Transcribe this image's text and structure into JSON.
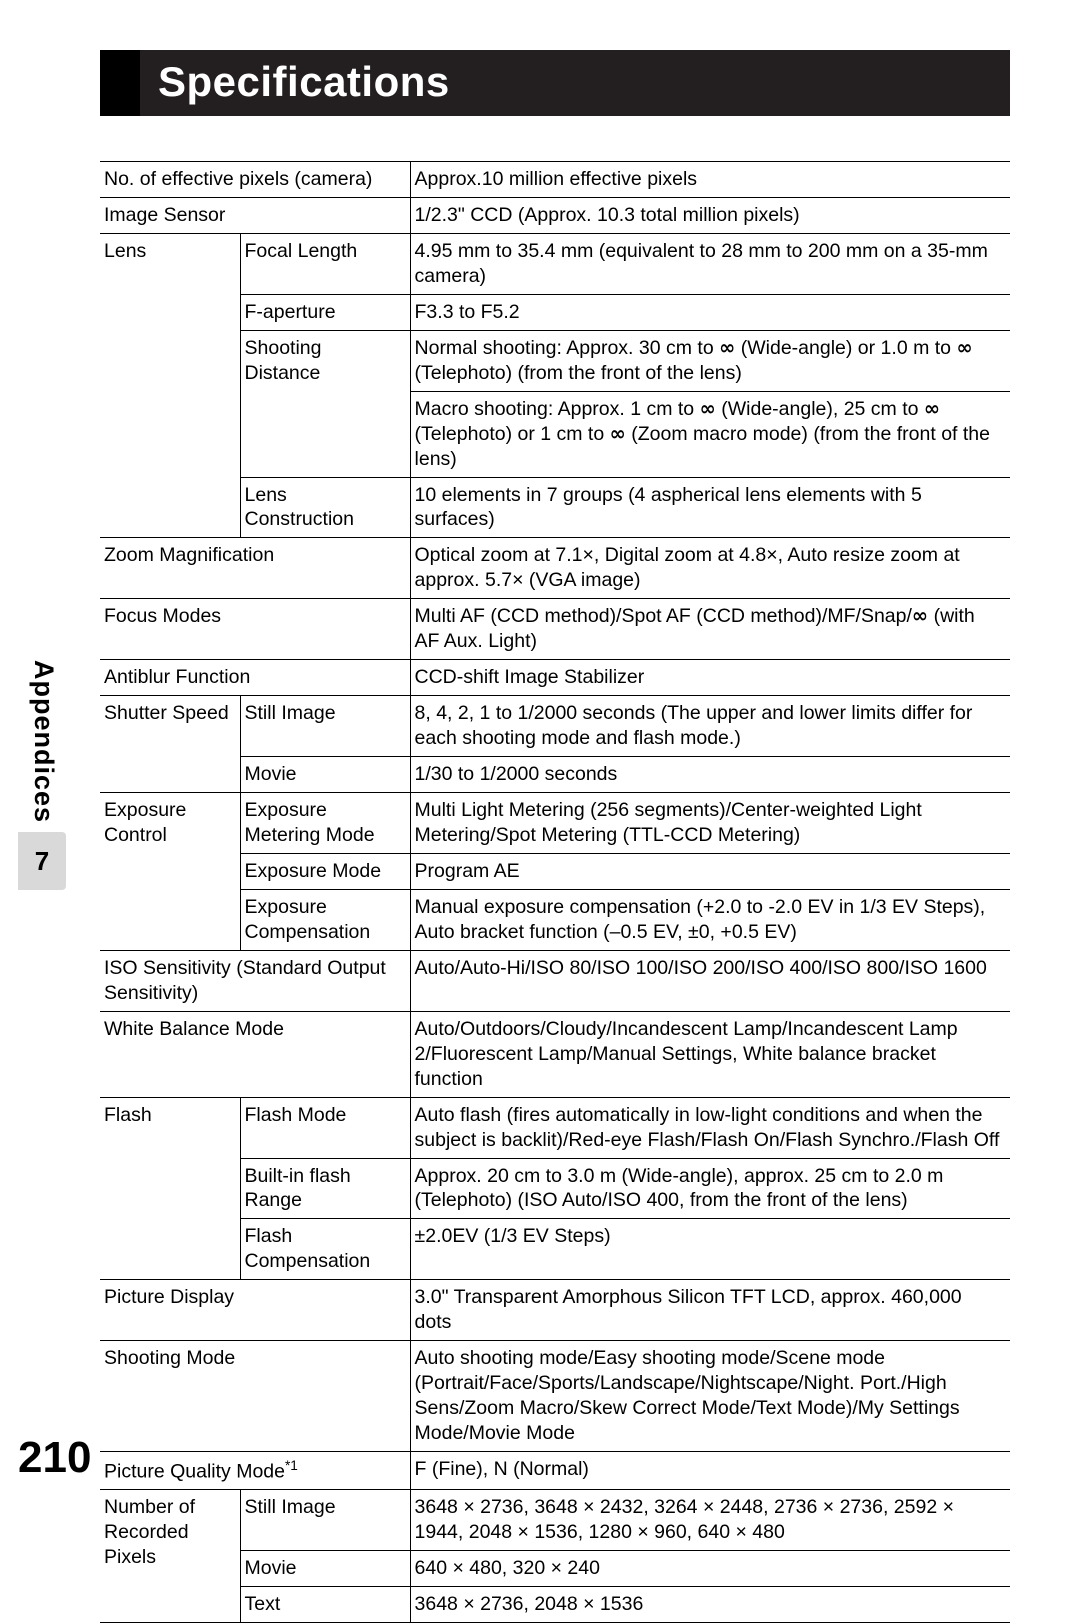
{
  "page": {
    "title": "Specifications",
    "side_label": "Appendices",
    "chapter_number": "7",
    "page_number": "210"
  },
  "spec_table": {
    "columns": {
      "c1_width": 140,
      "c2_width": 170
    },
    "font_size": 19.5,
    "border_color": "#000000",
    "rows": [
      {
        "label": "No. of effective pixels (camera)",
        "span": 2,
        "value": "Approx.10 million effective pixels"
      },
      {
        "label": "Image Sensor",
        "span": 2,
        "value": "1/2.3\" CCD (Approx. 10.3 total million pixels)"
      },
      {
        "label": "Lens",
        "rowspan": 5,
        "sub": "Focal Length",
        "value": "4.95 mm to 35.4 mm (equivalent to 28 mm to 200 mm on a 35-mm camera)"
      },
      {
        "sub": "F-aperture",
        "value": "F3.3 to F5.2"
      },
      {
        "sub": "Shooting Distance",
        "sub_rowspan": 2,
        "value": "Normal shooting: Approx. 30 cm to ∞ (Wide-angle) or 1.0 m to ∞ (Telephoto) (from the front of the lens)"
      },
      {
        "value": "Macro shooting: Approx. 1 cm to ∞ (Wide-angle), 25 cm to ∞ (Telephoto) or 1 cm to ∞ (Zoom macro mode) (from the front of the lens)"
      },
      {
        "sub": "Lens Construction",
        "value": "10 elements in 7 groups (4 aspherical lens elements with 5 surfaces)"
      },
      {
        "label": "Zoom Magnification",
        "span": 2,
        "value": "Optical zoom at 7.1×, Digital zoom at 4.8×, Auto resize zoom at approx. 5.7× (VGA image)"
      },
      {
        "label": "Focus Modes",
        "span": 2,
        "value": "Multi AF (CCD method)/Spot AF (CCD method)/MF/Snap/∞ (with AF Aux. Light)"
      },
      {
        "label": "Antiblur Function",
        "span": 2,
        "value": "CCD-shift Image Stabilizer"
      },
      {
        "label": "Shutter Speed",
        "rowspan": 2,
        "sub": "Still Image",
        "value": "8, 4, 2, 1 to 1/2000 seconds (The upper and lower limits differ for each shooting mode and flash mode.)"
      },
      {
        "sub": "Movie",
        "value": "1/30 to 1/2000 seconds"
      },
      {
        "label": "Exposure Control",
        "rowspan": 3,
        "sub": "Exposure Metering Mode",
        "value": "Multi Light Metering (256 segments)/Center-weighted Light Metering/Spot Metering (TTL-CCD Metering)"
      },
      {
        "sub": "Exposure Mode",
        "value": "Program AE"
      },
      {
        "sub": "Exposure Compensation",
        "value": "Manual exposure compensation (+2.0 to -2.0 EV in 1/3 EV Steps), Auto bracket function (–0.5 EV, ±0, +0.5 EV)"
      },
      {
        "label": "ISO Sensitivity (Standard Output Sensitivity)",
        "span": 2,
        "value": "Auto/Auto-Hi/ISO 80/ISO 100/ISO 200/ISO 400/ISO 800/ISO 1600"
      },
      {
        "label": "White Balance Mode",
        "span": 2,
        "value": "Auto/Outdoors/Cloudy/Incandescent Lamp/Incandescent Lamp 2/Fluorescent Lamp/Manual Settings, White balance bracket function"
      },
      {
        "label": "Flash",
        "rowspan": 3,
        "sub": "Flash Mode",
        "value": "Auto flash (fires automatically in low-light conditions and when the subject is backlit)/Red-eye Flash/Flash On/Flash Synchro./Flash Off"
      },
      {
        "sub": "Built-in flash Range",
        "value": "Approx. 20 cm to 3.0 m (Wide-angle), approx. 25 cm to 2.0 m (Telephoto) (ISO Auto/ISO 400, from the front of the lens)"
      },
      {
        "sub": "Flash Compensation",
        "value": "±2.0EV (1/3 EV Steps)"
      },
      {
        "label": "Picture Display",
        "span": 2,
        "value": "3.0\" Transparent Amorphous Silicon TFT LCD, approx. 460,000 dots"
      },
      {
        "label": "Shooting Mode",
        "span": 2,
        "value": "Auto shooting mode/Easy shooting mode/Scene mode (Portrait/Face/Sports/Landscape/Nightscape/Night. Port./High Sens/Zoom Macro/Skew Correct Mode/Text Mode)/My Settings Mode/Movie Mode"
      },
      {
        "label_html": "Picture Quality Mode<sup>*1</sup>",
        "span": 2,
        "value": "F (Fine), N (Normal)"
      },
      {
        "label": "Number of Recorded Pixels",
        "rowspan": 3,
        "sub": "Still Image",
        "value": "3648 × 2736, 3648 × 2432, 3264 × 2448, 2736 × 2736, 2592 × 1944, 2048 × 1536, 1280 × 960, 640 × 480"
      },
      {
        "sub": "Movie",
        "value": "640 × 480, 320 × 240"
      },
      {
        "sub": "Text",
        "value": "3648 × 2736, 2048 × 1536"
      }
    ]
  }
}
